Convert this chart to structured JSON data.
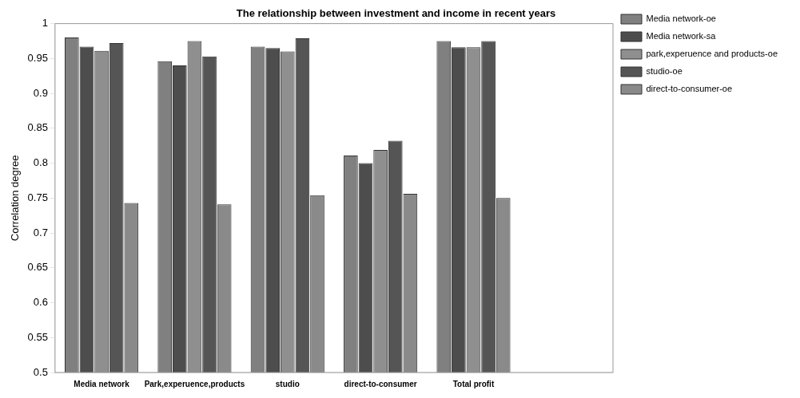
{
  "chart_data": {
    "type": "bar",
    "title": "The relationship between investment and income in recent years",
    "ylabel": "Correlation degree",
    "categories": [
      "Media network",
      "Park,experuence,products",
      "studio",
      "direct-to-consumer",
      "Total profit",
      null
    ],
    "series": [
      {
        "name": "Media network-oe",
        "color": "#808080",
        "values": [
          0.98,
          0.946,
          0.967,
          0.811,
          0.975,
          null
        ]
      },
      {
        "name": "Media network-sa",
        "color": "#4d4d4d",
        "values": [
          0.967,
          0.94,
          0.965,
          0.8,
          0.966,
          null
        ]
      },
      {
        "name": "park,experuence and products-oe",
        "color": "#8f8f8f",
        "values": [
          0.961,
          0.975,
          0.96,
          0.819,
          0.966,
          null
        ]
      },
      {
        "name": "studio-oe",
        "color": "#555555",
        "values": [
          0.972,
          0.953,
          0.979,
          0.832,
          0.975,
          null
        ]
      },
      {
        "name": "direct-to-consumer-oe",
        "color": "#8a8a8a",
        "values": [
          0.743,
          0.741,
          0.754,
          0.756,
          0.75,
          null
        ]
      }
    ],
    "ylim": [
      0.5,
      1
    ],
    "yticks": [
      0.5,
      0.55,
      0.6,
      0.65,
      0.7,
      0.75,
      0.8,
      0.85,
      0.9,
      0.95,
      1
    ],
    "grid": false,
    "legend": "top right"
  }
}
